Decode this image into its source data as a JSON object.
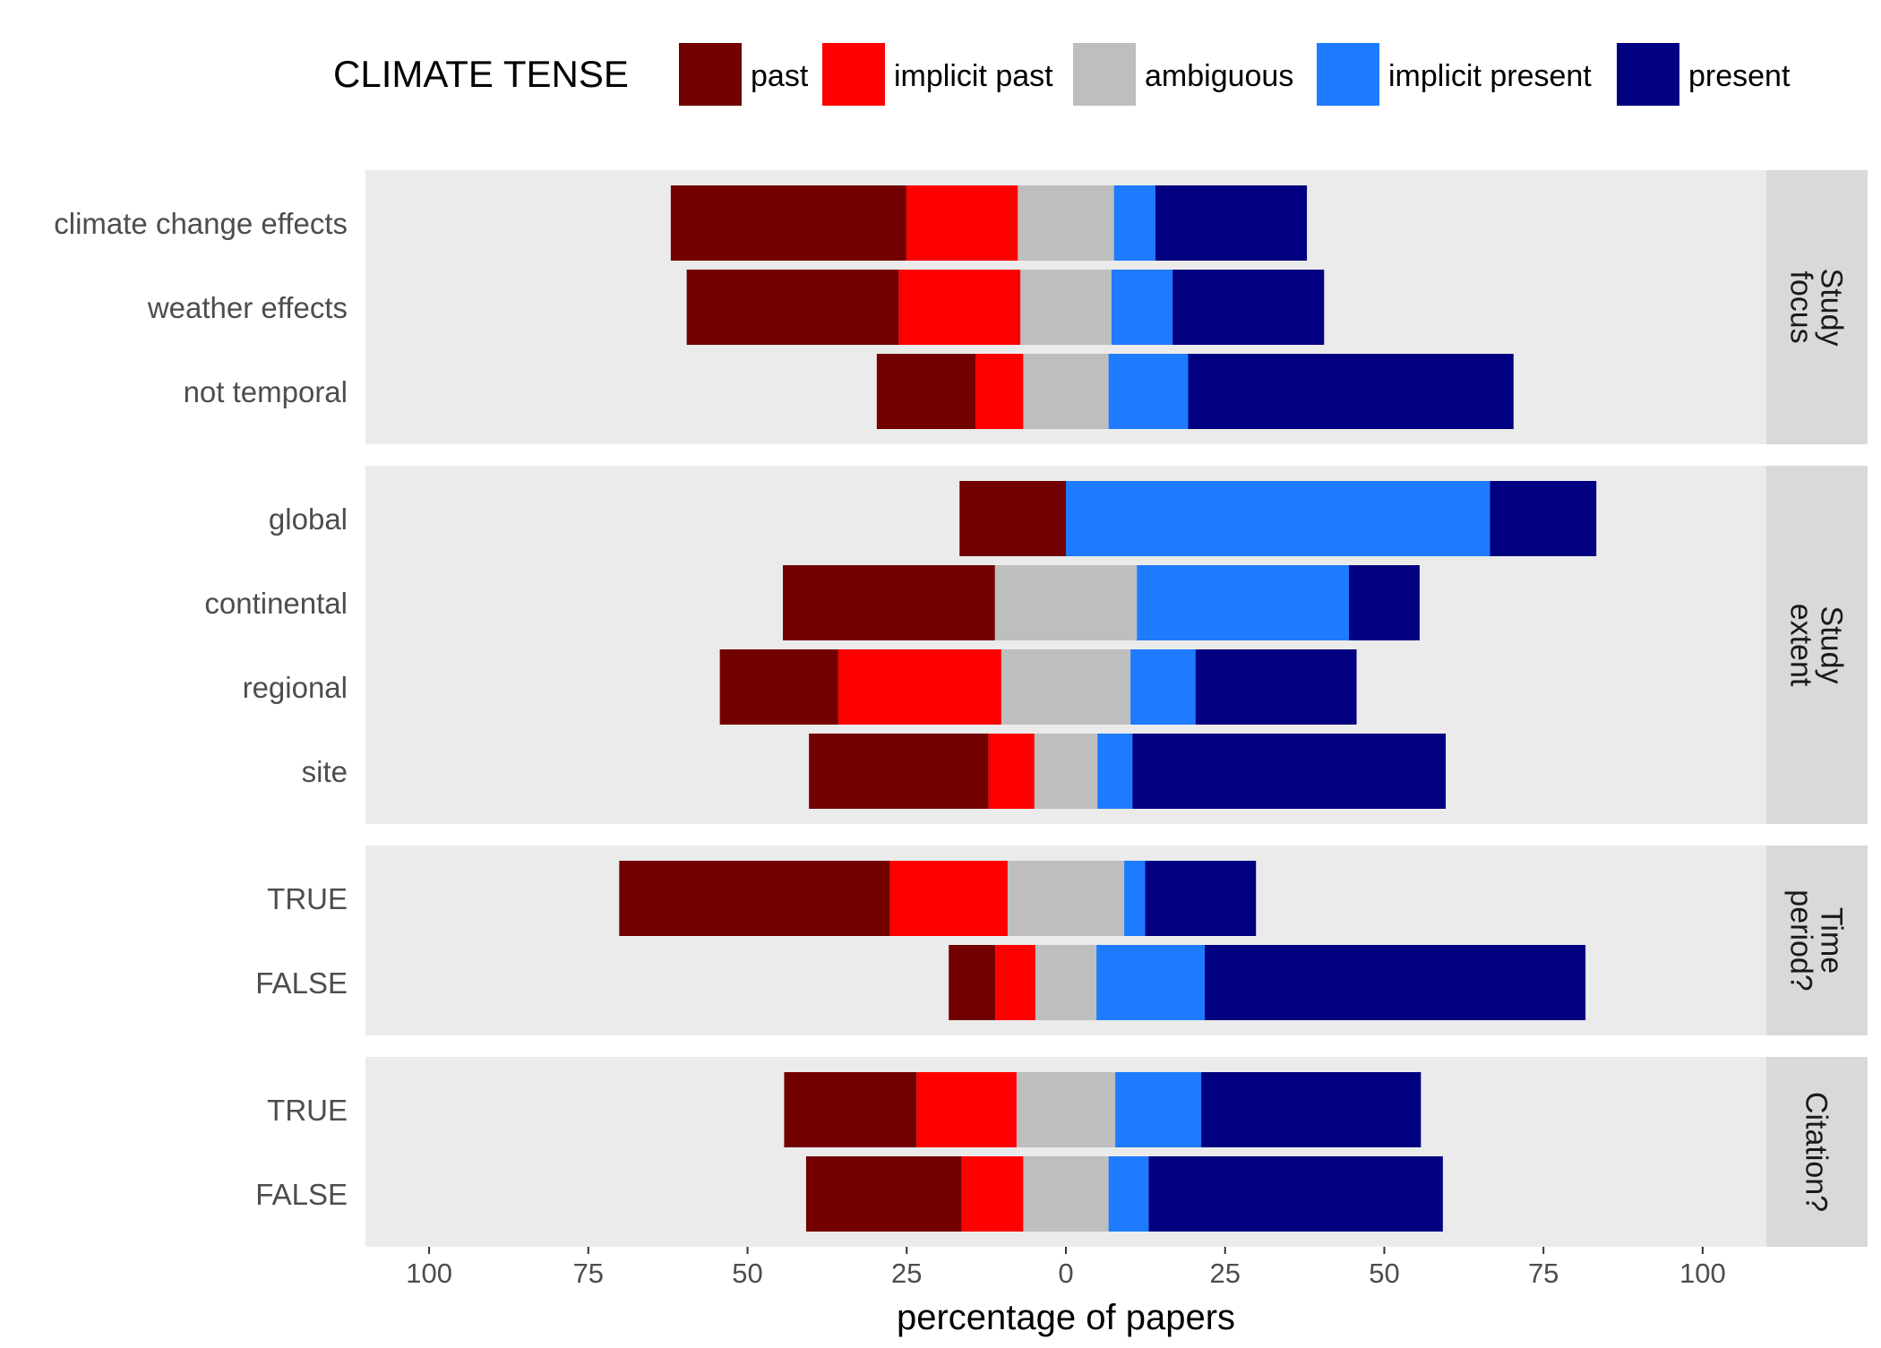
{
  "chart_data": {
    "type": "bar",
    "orientation": "horizontal",
    "stacking": "diverging",
    "xlabel": "percentage of papers",
    "x_ticks": [
      -100,
      -75,
      -50,
      -25,
      0,
      25,
      50,
      75,
      100
    ],
    "x_tick_labels": [
      "100",
      "75",
      "50",
      "25",
      "0",
      "25",
      "50",
      "75",
      "100"
    ],
    "xlim": [
      -110,
      110
    ],
    "legend": {
      "title": "CLIMATE TENSE",
      "position": "top",
      "entries": [
        "past",
        "implicit past",
        "ambiguous",
        "implicit present",
        "present"
      ]
    },
    "colors": {
      "past": "#730000",
      "implicit past": "#ff0000",
      "ambiguous": "#bebebe",
      "implicit present": "#1e7bff",
      "present": "#000080",
      "panel_background": "#ebebeb",
      "strip_background": "#d9d9d9"
    },
    "negative_stack_order": [
      "past",
      "implicit past"
    ],
    "positive_stack_order": [
      "implicit present",
      "present"
    ],
    "ambiguous_centered": true,
    "facets": [
      {
        "strip": [
          "Study",
          "focus"
        ],
        "categories": [
          {
            "label": "climate change effects",
            "values": {
              "past": 37,
              "implicit past": 17.5,
              "ambiguous": 15.1,
              "implicit present": 6.5,
              "present": 23.8
            }
          },
          {
            "label": "weather effects",
            "values": {
              "past": 33.3,
              "implicit past": 19.1,
              "ambiguous": 14.3,
              "implicit present": 9.6,
              "present": 23.8
            }
          },
          {
            "label": "not temporal",
            "values": {
              "past": 15.5,
              "implicit past": 7.5,
              "ambiguous": 13.4,
              "implicit present": 12.5,
              "present": 51.1
            }
          }
        ]
      },
      {
        "strip": [
          "Study",
          "extent"
        ],
        "categories": [
          {
            "label": "global",
            "values": {
              "past": 16.7,
              "implicit past": 0,
              "ambiguous": 0,
              "implicit present": 66.6,
              "present": 16.7
            }
          },
          {
            "label": "continental",
            "values": {
              "past": 33.3,
              "implicit past": 0,
              "ambiguous": 22.3,
              "implicit present": 33.3,
              "present": 11.1
            }
          },
          {
            "label": "regional",
            "values": {
              "past": 18.6,
              "implicit past": 25.6,
              "ambiguous": 20.3,
              "implicit present": 10.2,
              "present": 25.3
            }
          },
          {
            "label": "site",
            "values": {
              "past": 28.2,
              "implicit past": 7.2,
              "ambiguous": 9.9,
              "implicit present": 5.5,
              "present": 49.2
            }
          }
        ]
      },
      {
        "strip": [
          "Time",
          "period?"
        ],
        "categories": [
          {
            "label": "TRUE",
            "values": {
              "past": 42.5,
              "implicit past": 18.5,
              "ambiguous": 18.3,
              "implicit present": 3.3,
              "present": 17.4
            }
          },
          {
            "label": "FALSE",
            "values": {
              "past": 7.3,
              "implicit past": 6.3,
              "ambiguous": 9.6,
              "implicit present": 17,
              "present": 59.8
            }
          }
        ]
      },
      {
        "strip": [
          "Citation?"
        ],
        "categories": [
          {
            "label": "TRUE",
            "values": {
              "past": 20.8,
              "implicit past": 15.7,
              "ambiguous": 15.5,
              "implicit present": 13.5,
              "present": 34.5
            }
          },
          {
            "label": "FALSE",
            "values": {
              "past": 24.4,
              "implicit past": 9.7,
              "ambiguous": 13.4,
              "implicit present": 6.3,
              "present": 46.2
            }
          }
        ]
      }
    ]
  }
}
